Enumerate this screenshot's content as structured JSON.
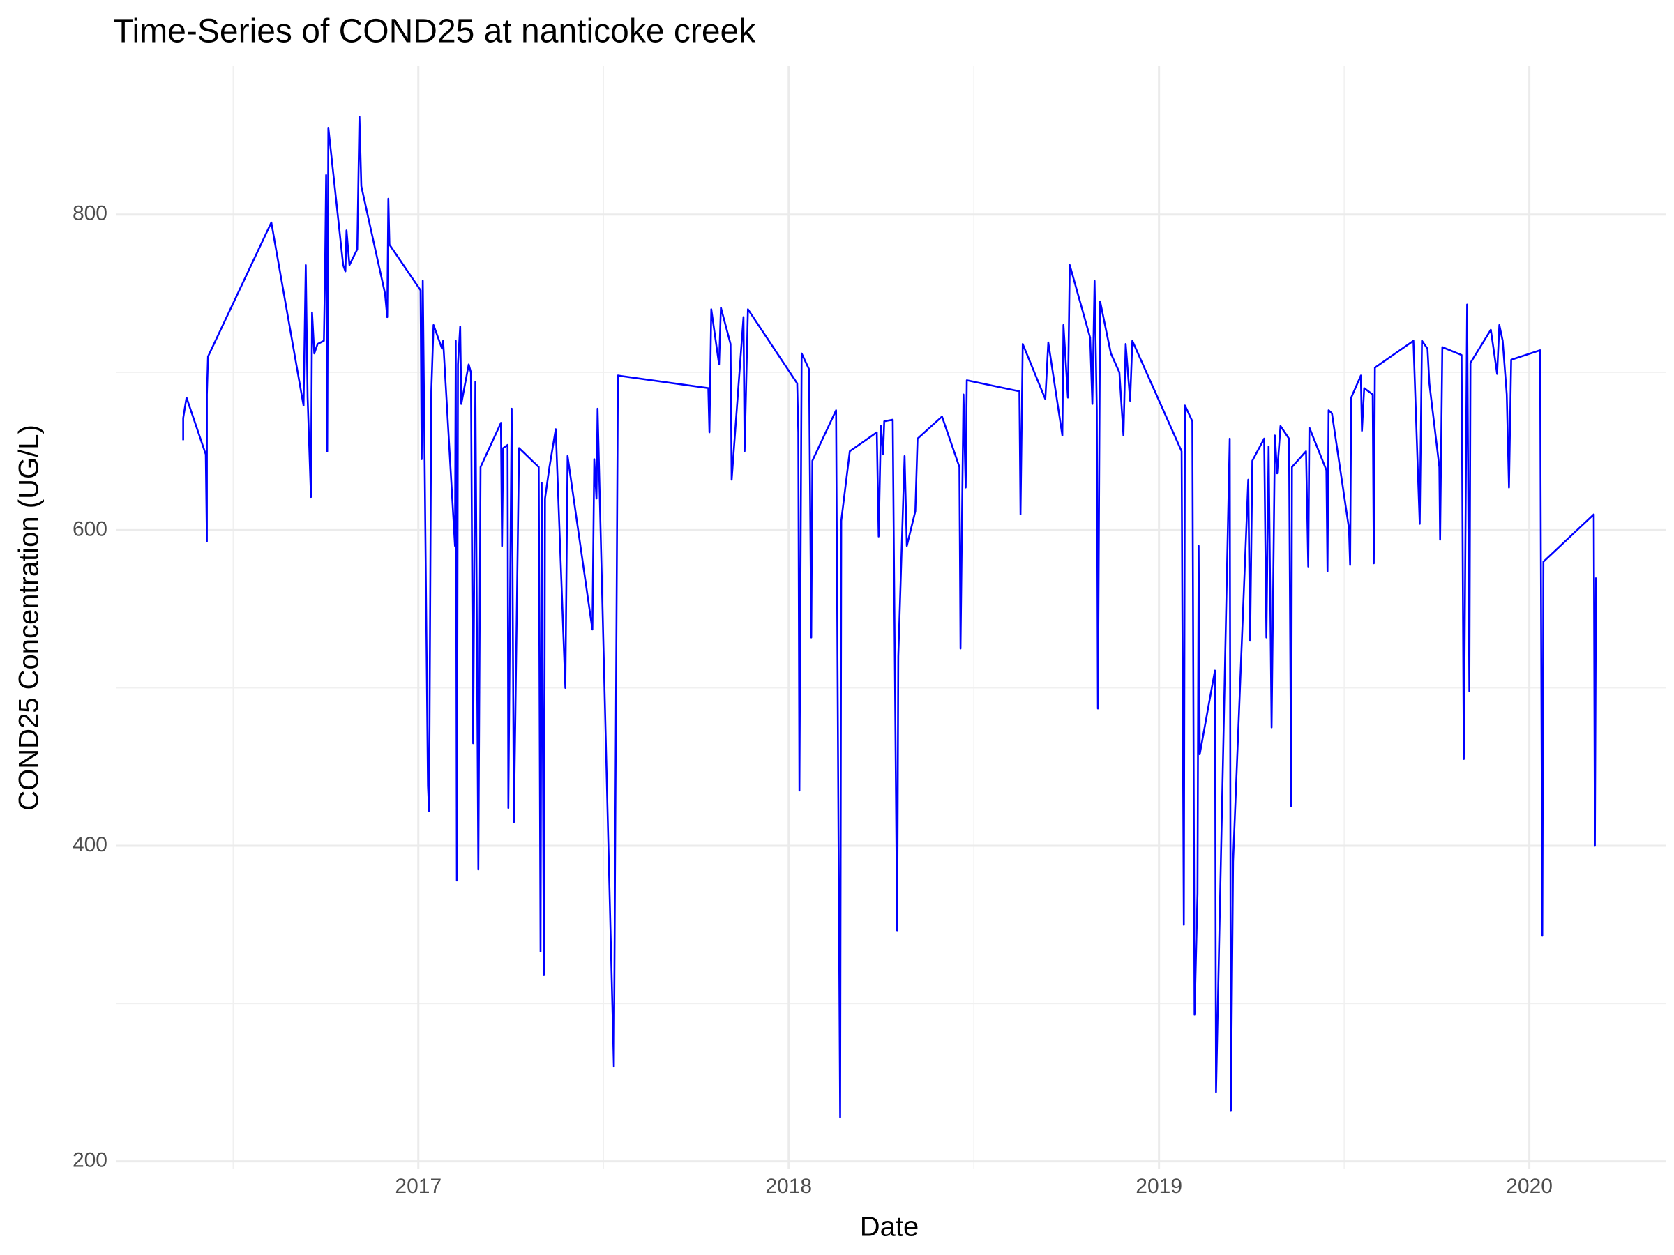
{
  "chart_data": {
    "type": "line",
    "title": "Time-Series of COND25 at nanticoke creek",
    "x_label": "Date",
    "y_label": "COND25 Concentration (UG/L)",
    "color": "#0000ff",
    "grid": true,
    "xlim": [
      2016.183,
      2020.368
    ],
    "xticks": [
      2017,
      2018,
      2019,
      2020
    ],
    "xminor": [
      2016.5,
      2017.5,
      2018.5,
      2019.5
    ],
    "ylim": [
      195,
      894
    ],
    "yticks": [
      200,
      400,
      600,
      800
    ],
    "yminor": [
      300,
      500,
      700
    ],
    "x": [
      2016.365,
      2016.365,
      2016.374,
      2016.426,
      2016.429,
      2016.429,
      2016.432,
      2016.603,
      2016.69,
      2016.696,
      2016.701,
      2016.71,
      2016.713,
      2016.719,
      2016.728,
      2016.745,
      2016.748,
      2016.751,
      2016.754,
      2016.757,
      2016.797,
      2016.803,
      2016.806,
      2016.814,
      2016.835,
      2016.841,
      2016.846,
      2016.91,
      2016.916,
      2016.919,
      2016.922,
      2017.006,
      2017.009,
      2017.012,
      2017.026,
      2017.029,
      2017.035,
      2017.041,
      2017.064,
      2017.067,
      2017.099,
      2017.101,
      2017.104,
      2017.107,
      2017.113,
      2017.116,
      2017.136,
      2017.142,
      2017.148,
      2017.154,
      2017.162,
      2017.168,
      2017.223,
      2017.226,
      2017.229,
      2017.241,
      2017.243,
      2017.252,
      2017.258,
      2017.272,
      2017.325,
      2017.33,
      2017.333,
      2017.339,
      2017.342,
      2017.354,
      2017.371,
      2017.397,
      2017.403,
      2017.47,
      2017.475,
      2017.481,
      2017.484,
      2017.528,
      2017.539,
      2017.783,
      2017.786,
      2017.791,
      2017.812,
      2017.817,
      2017.843,
      2017.846,
      2017.878,
      2017.881,
      2017.89,
      2018.023,
      2018.026,
      2018.029,
      2018.035,
      2018.055,
      2018.061,
      2018.064,
      2018.128,
      2018.133,
      2018.139,
      2018.142,
      2018.165,
      2018.238,
      2018.243,
      2018.249,
      2018.255,
      2018.258,
      2018.281,
      2018.293,
      2018.296,
      2018.313,
      2018.319,
      2018.342,
      2018.348,
      2018.414,
      2018.461,
      2018.464,
      2018.472,
      2018.478,
      2018.481,
      2018.623,
      2018.626,
      2018.632,
      2018.693,
      2018.701,
      2018.739,
      2018.742,
      2018.754,
      2018.759,
      2018.814,
      2018.82,
      2018.826,
      2018.832,
      2018.835,
      2018.841,
      2018.87,
      2018.893,
      2018.904,
      2018.91,
      2018.922,
      2018.928,
      2019.061,
      2019.067,
      2019.07,
      2019.09,
      2019.096,
      2019.104,
      2019.107,
      2019.11,
      2019.151,
      2019.154,
      2019.191,
      2019.194,
      2019.2,
      2019.241,
      2019.246,
      2019.252,
      2019.284,
      2019.29,
      2019.296,
      2019.304,
      2019.313,
      2019.319,
      2019.328,
      2019.351,
      2019.357,
      2019.359,
      2019.397,
      2019.403,
      2019.406,
      2019.452,
      2019.455,
      2019.458,
      2019.467,
      2019.513,
      2019.516,
      2019.519,
      2019.545,
      2019.548,
      2019.554,
      2019.577,
      2019.58,
      2019.583,
      2019.687,
      2019.699,
      2019.704,
      2019.71,
      2019.725,
      2019.73,
      2019.757,
      2019.759,
      2019.765,
      2019.817,
      2019.823,
      2019.832,
      2019.838,
      2019.841,
      2019.896,
      2019.913,
      2019.919,
      2019.928,
      2019.939,
      2019.945,
      2019.951,
      2020.029,
      2020.035,
      2020.038,
      2020.174,
      2020.177,
      2020.18
    ],
    "values": [
      657,
      671,
      684,
      648,
      593,
      686,
      710,
      795,
      679,
      768,
      684,
      621,
      738,
      712,
      718,
      720,
      762,
      825,
      650,
      855,
      768,
      764,
      790,
      768,
      778,
      862,
      818,
      750,
      735,
      810,
      781,
      752,
      645,
      758,
      438,
      422,
      688,
      730,
      715,
      720,
      590,
      720,
      378,
      705,
      729,
      680,
      705,
      700,
      465,
      694,
      385,
      640,
      668,
      590,
      652,
      654,
      424,
      677,
      415,
      652,
      640,
      333,
      630,
      318,
      620,
      640,
      664,
      500,
      647,
      537,
      645,
      620,
      677,
      260,
      698,
      690,
      662,
      740,
      705,
      741,
      718,
      632,
      735,
      650,
      740,
      693,
      662,
      435,
      712,
      702,
      532,
      644,
      676,
      470,
      228,
      606,
      650,
      662,
      596,
      666,
      648,
      669,
      670,
      346,
      520,
      647,
      590,
      612,
      658,
      672,
      640,
      525,
      686,
      627,
      695,
      688,
      610,
      718,
      683,
      719,
      660,
      730,
      684,
      768,
      722,
      680,
      758,
      676,
      487,
      745,
      712,
      700,
      660,
      718,
      682,
      720,
      650,
      350,
      679,
      669,
      293,
      370,
      590,
      458,
      511,
      244,
      658,
      232,
      390,
      632,
      530,
      644,
      658,
      532,
      653,
      475,
      660,
      636,
      666,
      658,
      425,
      640,
      650,
      577,
      665,
      638,
      574,
      676,
      674,
      601,
      578,
      684,
      698,
      663,
      690,
      686,
      579,
      703,
      720,
      637,
      604,
      720,
      715,
      693,
      640,
      594,
      716,
      711,
      455,
      743,
      498,
      706,
      727,
      699,
      730,
      720,
      686,
      627,
      708,
      714,
      343,
      580,
      610,
      400,
      570
    ]
  }
}
